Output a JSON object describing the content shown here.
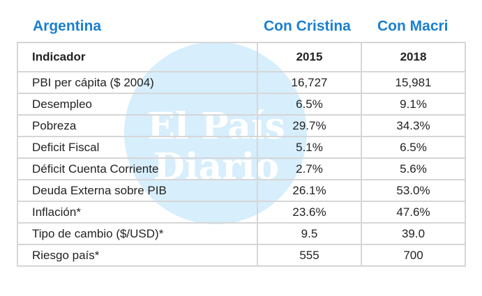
{
  "headers": {
    "country": "Argentina",
    "col1": "Con Cristina",
    "col2": "Con Macri"
  },
  "watermark": {
    "line1": "El País",
    "line2": "Diario"
  },
  "table": {
    "columns": [
      "Indicador",
      "2015",
      "2018"
    ],
    "rows": [
      [
        "PBI per cápita ($ 2004)",
        "16,727",
        "15,981"
      ],
      [
        "Desempleo",
        "6.5%",
        "9.1%"
      ],
      [
        "Pobreza",
        "29.7%",
        "34.3%"
      ],
      [
        "Deficit Fiscal",
        "5.1%",
        "6.5%"
      ],
      [
        "Déficit Cuenta Corriente",
        "2.7%",
        "5.6%"
      ],
      [
        "Deuda Externa sobre PIB",
        "26.1%",
        "53.0%"
      ],
      [
        "Inflación*",
        "23.6%",
        "47.6%"
      ],
      [
        "Tipo de cambio ($/USD)*",
        "9.5",
        "39.0"
      ],
      [
        "Riesgo país*",
        "555",
        "700"
      ]
    ]
  }
}
